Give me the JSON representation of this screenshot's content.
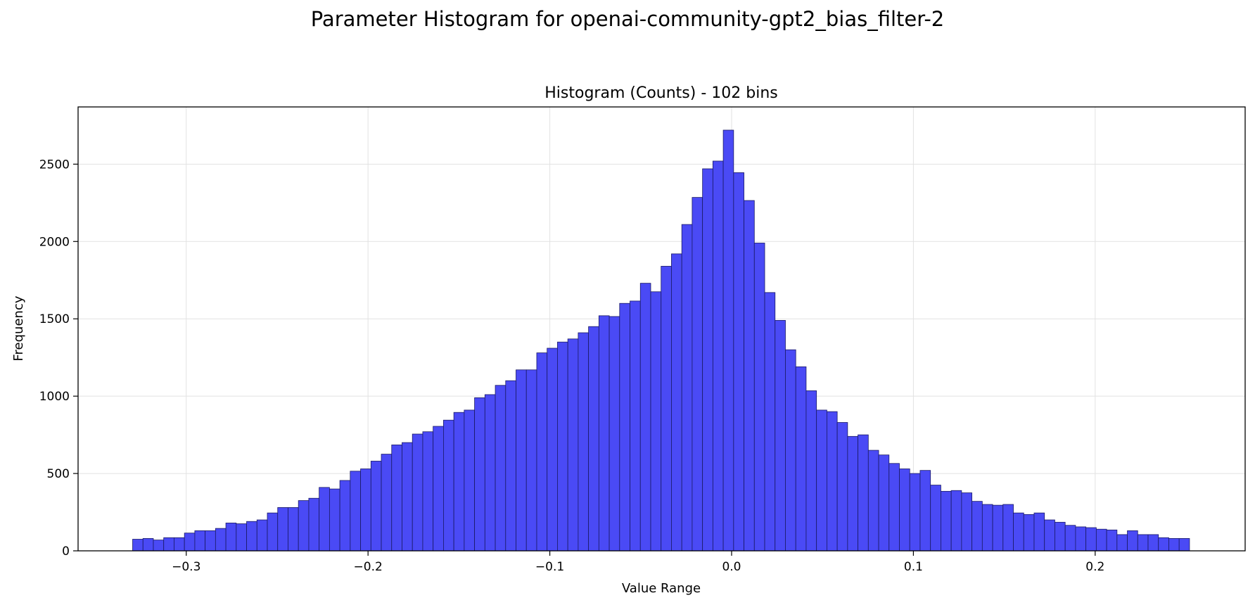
{
  "figure_title": "Parameter Histogram for openai-community-gpt2_bias_filter-2",
  "colors": {
    "bar_fill": "#4a4af5",
    "bar_edge": "#1a1a66",
    "grid": "#e2e2e2"
  },
  "chart_data": {
    "type": "bar",
    "title": "Histogram (Counts) - 102 bins",
    "xlabel": "Value Range",
    "ylabel": "Frequency",
    "xlim": [
      -0.3595,
      0.2825
    ],
    "ylim": [
      0,
      2870
    ],
    "grid": true,
    "bin_start": -0.3295,
    "bin_width": 0.0057,
    "xticks": [
      -0.3,
      -0.2,
      -0.1,
      0.0,
      0.1,
      0.2
    ],
    "xtick_labels": [
      "−0.3",
      "−0.2",
      "−0.1",
      "0.0",
      "0.1",
      "0.2"
    ],
    "yticks": [
      0,
      500,
      1000,
      1500,
      2000,
      2500
    ],
    "ytick_labels": [
      "0",
      "500",
      "1000",
      "1500",
      "2000",
      "2500"
    ],
    "values": [
      75,
      80,
      70,
      85,
      85,
      115,
      130,
      130,
      145,
      180,
      175,
      190,
      200,
      245,
      280,
      280,
      325,
      340,
      410,
      400,
      455,
      515,
      530,
      580,
      625,
      685,
      700,
      755,
      770,
      805,
      845,
      895,
      910,
      990,
      1010,
      1070,
      1100,
      1170,
      1170,
      1280,
      1310,
      1350,
      1370,
      1410,
      1450,
      1520,
      1515,
      1600,
      1615,
      1730,
      1675,
      1840,
      1920,
      2110,
      2285,
      2470,
      2520,
      2720,
      2445,
      2265,
      1990,
      1670,
      1490,
      1300,
      1190,
      1035,
      910,
      900,
      830,
      740,
      750,
      650,
      620,
      565,
      530,
      500,
      520,
      425,
      385,
      390,
      375,
      320,
      300,
      295,
      300,
      245,
      235,
      245,
      200,
      185,
      165,
      155,
      150,
      140,
      135,
      105,
      130,
      105,
      105,
      85,
      80,
      80
    ]
  }
}
